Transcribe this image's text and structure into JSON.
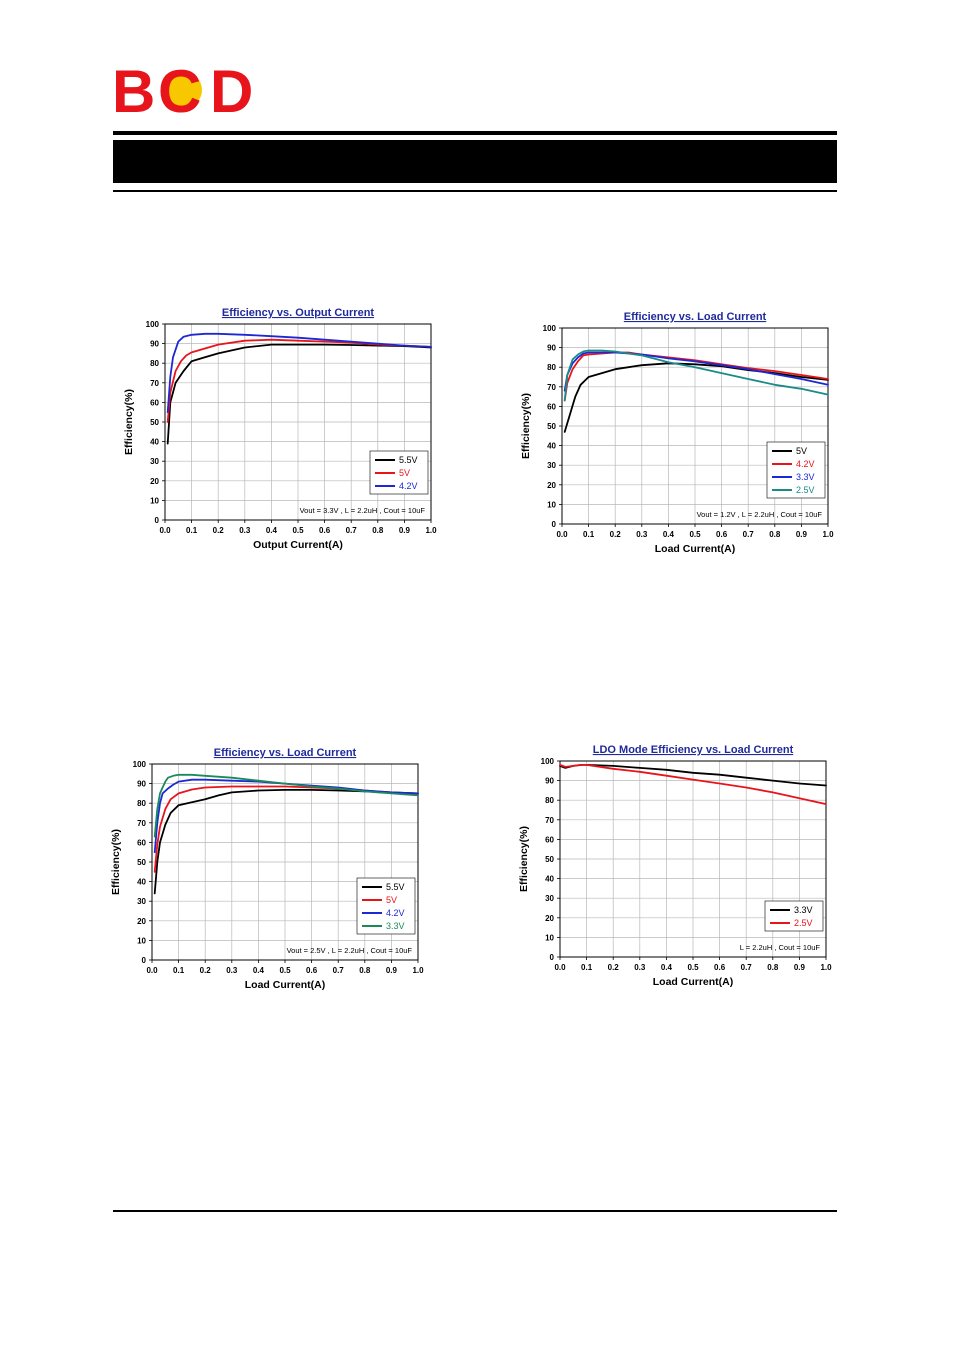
{
  "logo": {
    "letters": [
      "B",
      "C",
      "D"
    ],
    "colors": {
      "letters": "#e8141c",
      "ball": "#f7c800"
    }
  },
  "colors": {
    "title": "#1f2a9c",
    "grid": "#b8b8b8",
    "header_bar": "#000000"
  },
  "chart_data": [
    {
      "type": "line",
      "title": "Efficiency vs. Output Current",
      "xlabel": "Output Current(A)",
      "ylabel": "Efficiency(%)",
      "xlim": [
        0.0,
        1.0
      ],
      "ylim": [
        0,
        100
      ],
      "xticks": [
        "0.0",
        "0.1",
        "0.2",
        "0.3",
        "0.4",
        "0.5",
        "0.6",
        "0.7",
        "0.8",
        "0.9",
        "1.0"
      ],
      "yticks": [
        "0",
        "10",
        "20",
        "30",
        "40",
        "50",
        "60",
        "70",
        "80",
        "90",
        "100"
      ],
      "grid": true,
      "legend_position": "bottom-right",
      "note": "Vout = 3.3V , L = 2.2uH , Cout = 10uF",
      "series": [
        {
          "name": "5.5V",
          "color": "#000000",
          "x": [
            0.01,
            0.02,
            0.04,
            0.07,
            0.1,
            0.15,
            0.2,
            0.3,
            0.4,
            0.5,
            0.6,
            0.7,
            0.8,
            0.9,
            1.0
          ],
          "y": [
            39,
            60,
            70,
            76,
            81,
            83,
            85,
            88,
            89.5,
            89.5,
            89.5,
            89.3,
            89,
            88.7,
            88
          ]
        },
        {
          "name": "5V",
          "color": "#e8141c",
          "x": [
            0.01,
            0.02,
            0.04,
            0.06,
            0.08,
            0.1,
            0.15,
            0.2,
            0.3,
            0.4,
            0.5,
            0.6,
            0.7,
            0.8,
            0.9,
            1.0
          ],
          "y": [
            50,
            65,
            76,
            81,
            84,
            85.5,
            87.5,
            89.5,
            91.5,
            92,
            91.5,
            91,
            90.5,
            89.5,
            89,
            88.3
          ]
        },
        {
          "name": "4.2V",
          "color": "#1c28d4",
          "x": [
            0.01,
            0.02,
            0.03,
            0.05,
            0.07,
            0.1,
            0.15,
            0.2,
            0.3,
            0.4,
            0.5,
            0.6,
            0.7,
            0.8,
            0.9,
            1.0
          ],
          "y": [
            55,
            73,
            83,
            91,
            93.5,
            94.5,
            95,
            95,
            94.5,
            93.8,
            93,
            92,
            91,
            90,
            89,
            88.3
          ]
        }
      ]
    },
    {
      "type": "line",
      "title": "Efficiency vs. Load Current",
      "xlabel": "Load Current(A)",
      "ylabel": "Efficiency(%)",
      "xlim": [
        0.0,
        1.0
      ],
      "ylim": [
        0,
        100
      ],
      "xticks": [
        "0.0",
        "0.1",
        "0.2",
        "0.3",
        "0.4",
        "0.5",
        "0.6",
        "0.7",
        "0.8",
        "0.9",
        "1.0"
      ],
      "yticks": [
        "0",
        "10",
        "20",
        "30",
        "40",
        "50",
        "60",
        "70",
        "80",
        "90",
        "100"
      ],
      "grid": true,
      "legend_position": "bottom-right",
      "note": "Vout = 1.2V , L = 2.2uH , Cout = 10uF",
      "series": [
        {
          "name": "5V",
          "color": "#000000",
          "x": [
            0.01,
            0.03,
            0.05,
            0.07,
            0.1,
            0.15,
            0.2,
            0.3,
            0.4,
            0.5,
            0.6,
            0.7,
            0.8,
            0.9,
            1.0
          ],
          "y": [
            47,
            56,
            65,
            71,
            75,
            77,
            79,
            81,
            82,
            81.5,
            80.5,
            78.5,
            77,
            75,
            73.5
          ]
        },
        {
          "name": "4.2V",
          "color": "#e8141c",
          "x": [
            0.01,
            0.02,
            0.04,
            0.06,
            0.08,
            0.1,
            0.15,
            0.2,
            0.25,
            0.3,
            0.4,
            0.5,
            0.6,
            0.7,
            0.8,
            0.9,
            1.0
          ],
          "y": [
            63,
            72,
            79,
            83,
            86,
            86.5,
            87,
            87.5,
            87.5,
            86.5,
            85,
            83.5,
            81.5,
            79.5,
            78,
            76,
            74
          ]
        },
        {
          "name": "3.3V",
          "color": "#1c28d4",
          "x": [
            0.01,
            0.02,
            0.04,
            0.06,
            0.08,
            0.1,
            0.15,
            0.2,
            0.25,
            0.3,
            0.4,
            0.5,
            0.6,
            0.7,
            0.8,
            0.9,
            1.0
          ],
          "y": [
            68,
            76,
            82,
            85,
            87,
            87.5,
            87.5,
            87.5,
            87,
            86.5,
            84.5,
            83,
            81,
            79,
            76.5,
            74,
            71
          ]
        },
        {
          "name": "2.5V",
          "color": "#1a8a8a",
          "x": [
            0.01,
            0.02,
            0.04,
            0.06,
            0.08,
            0.1,
            0.15,
            0.2,
            0.25,
            0.3,
            0.4,
            0.5,
            0.6,
            0.7,
            0.8,
            0.9,
            1.0
          ],
          "y": [
            63,
            76,
            84,
            86.5,
            88,
            88.5,
            88.5,
            88,
            87,
            86,
            82.5,
            80,
            77,
            74,
            71,
            69,
            66
          ]
        }
      ]
    },
    {
      "type": "line",
      "title": "Efficiency vs. Load Current",
      "xlabel": "Load Current(A)",
      "ylabel": "Efficiency(%)",
      "xlim": [
        0.0,
        1.0
      ],
      "ylim": [
        0,
        100
      ],
      "xticks": [
        "0.0",
        "0.1",
        "0.2",
        "0.3",
        "0.4",
        "0.5",
        "0.6",
        "0.7",
        "0.8",
        "0.9",
        "1.0"
      ],
      "yticks": [
        "0",
        "10",
        "20",
        "30",
        "40",
        "50",
        "60",
        "70",
        "80",
        "90",
        "100"
      ],
      "grid": true,
      "legend_position": "bottom-right",
      "note": "Vout = 2.5V , L = 2.2uH , Cout = 10uF",
      "series": [
        {
          "name": "5.5V",
          "color": "#000000",
          "x": [
            0.01,
            0.02,
            0.03,
            0.05,
            0.07,
            0.1,
            0.15,
            0.2,
            0.25,
            0.3,
            0.4,
            0.5,
            0.6,
            0.7,
            0.8,
            0.9,
            1.0
          ],
          "y": [
            34,
            50,
            60,
            69,
            75,
            79,
            80.5,
            82,
            84,
            85.5,
            86.5,
            86.8,
            86.8,
            86.5,
            86,
            85.5,
            85
          ]
        },
        {
          "name": "5V",
          "color": "#e8141c",
          "x": [
            0.01,
            0.02,
            0.03,
            0.05,
            0.07,
            0.1,
            0.15,
            0.2,
            0.3,
            0.4,
            0.5,
            0.6,
            0.7,
            0.8,
            0.9,
            1.0
          ],
          "y": [
            45,
            59,
            68,
            77,
            82,
            85,
            87,
            88,
            88.5,
            88.5,
            88.5,
            88,
            87.5,
            86.5,
            85.5,
            84.5
          ]
        },
        {
          "name": "4.2V",
          "color": "#1c28d4",
          "x": [
            0.01,
            0.02,
            0.03,
            0.04,
            0.06,
            0.08,
            0.1,
            0.15,
            0.2,
            0.3,
            0.4,
            0.5,
            0.6,
            0.7,
            0.8,
            0.9,
            1.0
          ],
          "y": [
            55,
            70,
            80,
            85,
            87.5,
            89.5,
            91,
            92,
            92,
            91.5,
            91,
            90,
            89,
            88,
            86.5,
            85.5,
            85
          ]
        },
        {
          "name": "3.3V",
          "color": "#1a8a5c",
          "x": [
            0.01,
            0.02,
            0.03,
            0.04,
            0.05,
            0.06,
            0.08,
            0.1,
            0.15,
            0.2,
            0.3,
            0.4,
            0.5,
            0.6,
            0.7,
            0.8,
            0.9,
            1.0
          ],
          "y": [
            63,
            77,
            85,
            88,
            91,
            93,
            94,
            94.5,
            94.5,
            94,
            93,
            91.5,
            90,
            88.5,
            87.5,
            86,
            85,
            84
          ]
        }
      ]
    },
    {
      "type": "line",
      "title": "LDO Mode  Efficiency vs. Load Current",
      "xlabel": "Load Current(A)",
      "ylabel": "Efficiency(%)",
      "xlim": [
        0.0,
        1.0
      ],
      "ylim": [
        0,
        100
      ],
      "xticks": [
        "0.0",
        "0.1",
        "0.2",
        "0.3",
        "0.4",
        "0.5",
        "0.6",
        "0.7",
        "0.8",
        "0.9",
        "1.0"
      ],
      "yticks": [
        "0",
        "10",
        "20",
        "30",
        "40",
        "50",
        "60",
        "70",
        "80",
        "90",
        "100"
      ],
      "grid": true,
      "legend_position": "bottom-right",
      "note": "L = 2.2uH , Cout = 10uF",
      "series": [
        {
          "name": "3.3V",
          "color": "#000000",
          "x": [
            0.0,
            0.02,
            0.05,
            0.08,
            0.1,
            0.2,
            0.3,
            0.4,
            0.5,
            0.6,
            0.7,
            0.8,
            0.9,
            1.0
          ],
          "y": [
            97.5,
            96.5,
            97.5,
            98,
            98,
            97.5,
            96.5,
            95.5,
            94,
            93,
            91.5,
            90,
            88.5,
            87.5
          ]
        },
        {
          "name": "2.5V",
          "color": "#e8141c",
          "x": [
            0.0,
            0.02,
            0.05,
            0.08,
            0.1,
            0.2,
            0.3,
            0.4,
            0.5,
            0.6,
            0.7,
            0.8,
            0.9,
            1.0
          ],
          "y": [
            98,
            97,
            97.5,
            98,
            98,
            96,
            94.5,
            92.5,
            90.5,
            88.5,
            86.5,
            84,
            81,
            78
          ]
        }
      ]
    }
  ]
}
